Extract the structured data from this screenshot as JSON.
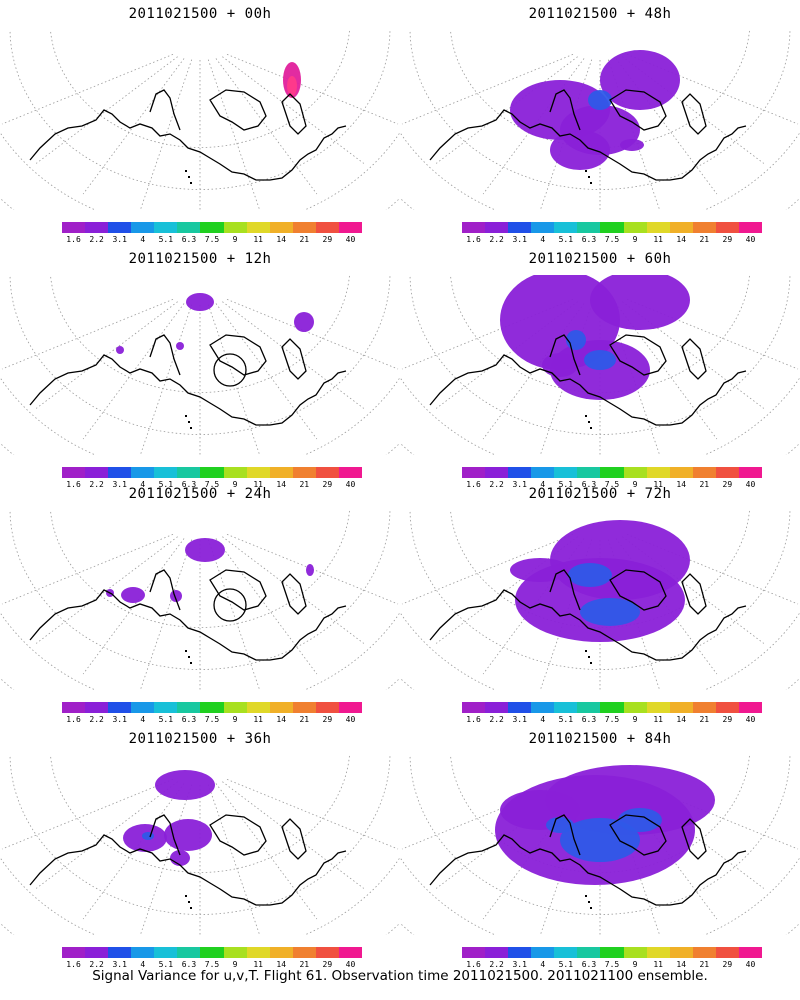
{
  "panels": [
    {
      "title": "2011021500 + 00h",
      "blobs": [
        [
          292,
          80,
          9,
          18,
          "#e0209c"
        ],
        [
          292,
          86,
          5,
          10,
          "#ff3a8a"
        ]
      ],
      "circle": false
    },
    {
      "title": "2011021500 + 48h",
      "blobs": [
        [
          560,
          110,
          50,
          30,
          "#8a20d8"
        ],
        [
          600,
          130,
          40,
          25,
          "#8a20d8"
        ],
        [
          580,
          150,
          30,
          20,
          "#8a20d8"
        ],
        [
          640,
          80,
          40,
          30,
          "#8a20d8"
        ],
        [
          600,
          100,
          12,
          10,
          "#2f58e8"
        ],
        [
          632,
          145,
          12,
          6,
          "#8a20d8"
        ]
      ],
      "circle": false
    },
    {
      "title": "2011021500 + 12h",
      "blobs": [
        [
          200,
          302,
          14,
          9,
          "#8a20d8"
        ],
        [
          304,
          322,
          10,
          10,
          "#8a20d8"
        ],
        [
          120,
          350,
          4,
          4,
          "#8a20d8"
        ],
        [
          180,
          346,
          4,
          4,
          "#8a20d8"
        ]
      ],
      "circle": true
    },
    {
      "title": "2011021500 + 60h",
      "blobs": [
        [
          560,
          320,
          60,
          50,
          "#8a20d8"
        ],
        [
          600,
          370,
          50,
          30,
          "#8a20d8"
        ],
        [
          640,
          300,
          50,
          30,
          "#8a20d8"
        ],
        [
          560,
          365,
          18,
          12,
          "#8a20d8"
        ],
        [
          600,
          360,
          16,
          10,
          "#2f58e8"
        ],
        [
          576,
          340,
          10,
          10,
          "#2f58e8"
        ]
      ],
      "circle": false
    },
    {
      "title": "2011021500 + 24h",
      "blobs": [
        [
          205,
          550,
          20,
          12,
          "#8a20d8"
        ],
        [
          133,
          595,
          12,
          8,
          "#8a20d8"
        ],
        [
          176,
          596,
          6,
          6,
          "#8a20d8"
        ],
        [
          110,
          593,
          4,
          4,
          "#8a20d8"
        ],
        [
          310,
          570,
          4,
          6,
          "#8a20d8"
        ]
      ],
      "circle": true
    },
    {
      "title": "2011021500 + 72h",
      "blobs": [
        [
          600,
          600,
          85,
          42,
          "#8a20d8"
        ],
        [
          620,
          560,
          70,
          40,
          "#8a20d8"
        ],
        [
          540,
          570,
          30,
          12,
          "#8a20d8"
        ],
        [
          610,
          612,
          30,
          14,
          "#2f58e8"
        ],
        [
          590,
          575,
          22,
          12,
          "#2f58e8"
        ]
      ],
      "circle": false
    },
    {
      "title": "2011021500 + 36h",
      "blobs": [
        [
          185,
          785,
          30,
          15,
          "#8a20d8"
        ],
        [
          145,
          838,
          22,
          14,
          "#8a20d8"
        ],
        [
          188,
          835,
          24,
          16,
          "#8a20d8"
        ],
        [
          180,
          858,
          10,
          8,
          "#8a20d8"
        ],
        [
          148,
          836,
          6,
          4,
          "#2f58e8"
        ]
      ],
      "circle": false
    },
    {
      "title": "2011021500 + 84h",
      "blobs": [
        [
          595,
          830,
          100,
          55,
          "#8a20d8"
        ],
        [
          630,
          800,
          85,
          35,
          "#8a20d8"
        ],
        [
          540,
          810,
          40,
          20,
          "#8a20d8"
        ],
        [
          600,
          840,
          40,
          22,
          "#2f58e8"
        ],
        [
          640,
          820,
          22,
          12,
          "#2f58e8"
        ],
        [
          560,
          825,
          14,
          8,
          "#2f58e8"
        ]
      ],
      "circle": false
    }
  ],
  "colorbar": {
    "colors": [
      "#a020c8",
      "#8a20d8",
      "#2050e8",
      "#1898e8",
      "#18c0d8",
      "#18c8a0",
      "#20d020",
      "#a8e020",
      "#e0d828",
      "#f0b028",
      "#f08030",
      "#f05040",
      "#f01890"
    ],
    "labels": [
      "1.6",
      "2.2",
      "3.1",
      "4",
      "5.1",
      "6.3",
      "7.5",
      "9",
      "11",
      "14",
      "21",
      "29",
      "40"
    ]
  },
  "footer": "Signal Variance for u,v,T. Flight 61. Observation time 2011021500. 2011021100 ensemble."
}
